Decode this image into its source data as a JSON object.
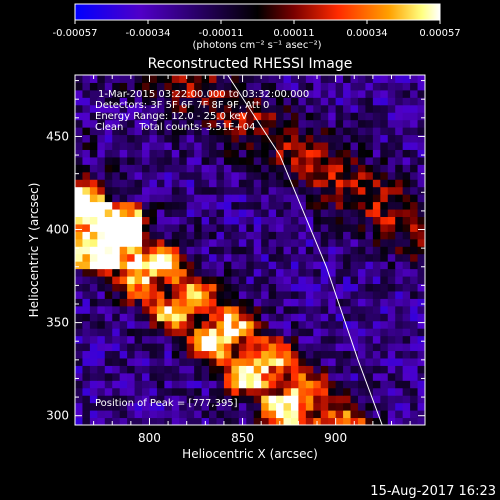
{
  "chart_data": {
    "type": "heatmap",
    "title": "Reconstructed RHESSI Image",
    "xlabel": "Heliocentric X (arcsec)",
    "ylabel": "Heliocentric Y (arcsec)",
    "xlim": [
      760,
      948
    ],
    "ylim": [
      295,
      483
    ],
    "x_ticks": [
      800,
      850,
      900
    ],
    "y_ticks": [
      300,
      350,
      400,
      450
    ],
    "colorbar": {
      "range": [
        -0.00057,
        0.00057
      ],
      "tick_labels": [
        "-0.00057",
        "-0.00034",
        "-0.00011",
        "0.00011",
        "0.00034",
        "0.00057"
      ],
      "unit_label": "(photons cm⁻² s⁻¹ asec⁻²)",
      "colormap_stops": [
        "#0000ff",
        "#5000c8",
        "#000000",
        "#7a0000",
        "#ff2a00",
        "#ffa000",
        "#ffff80",
        "#ffffff"
      ]
    },
    "annotations": [
      "1-Mar-2015 03:22:00.000 to 03:32:00.000",
      "Detectors: 3F 5F 6F 7F 8F 9F, Att 0",
      "Energy Range: 12.0 - 25.0 keV",
      "Clean     Total counts: 3.51E+04"
    ],
    "peak_label": "Position of Peak = [777,395]",
    "peak_position": [
      777,
      395
    ],
    "limb_curve": [
      [
        842,
        483
      ],
      [
        870,
        440
      ],
      [
        895,
        380
      ],
      [
        912,
        330
      ],
      [
        925,
        295
      ]
    ],
    "grid": false,
    "legend": "none"
  },
  "timestamp": "15-Aug-2017 16:23"
}
